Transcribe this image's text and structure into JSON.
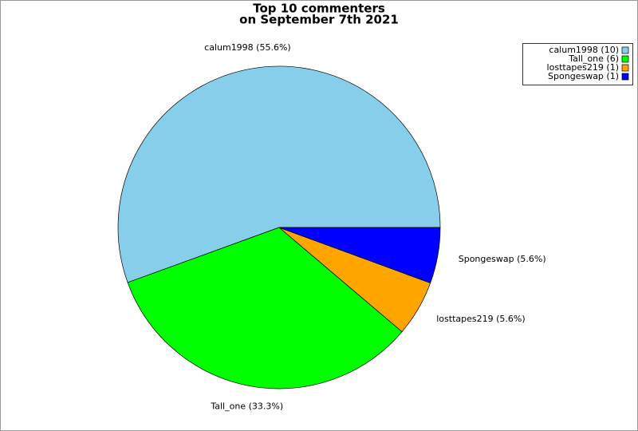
{
  "chart_data": {
    "type": "pie",
    "title": "Top 10 commenters",
    "subtitle": "on September 7th 2021",
    "categories": [
      "calum1998",
      "Tall_one",
      "losttapes219",
      "Spongeswap"
    ],
    "values": [
      55.6,
      33.3,
      5.6,
      5.6
    ],
    "value_labels": [
      "calum1998 (55.6%)",
      "Tall_one (33.3%)",
      "losttapes219 (5.6%)",
      "Spongeswap (5.6%)"
    ],
    "legend_labels": [
      "calum1998 (10)",
      "Tall_one (6)",
      "losttapes219 (1)",
      "Spongeswap (1)"
    ],
    "colors": [
      "#87ceeb",
      "#00ff00",
      "#ffa500",
      "#0000ff"
    ],
    "legend": "upper right"
  }
}
